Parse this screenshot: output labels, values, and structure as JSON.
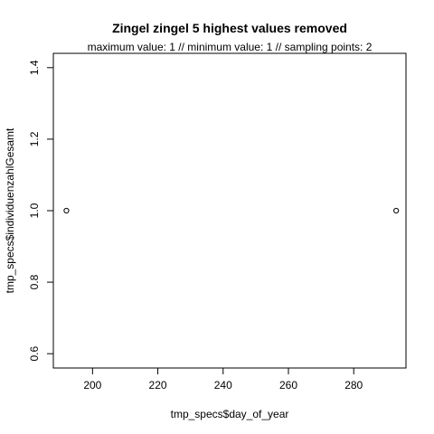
{
  "chart_data": {
    "type": "scatter",
    "title": "Zingel zingel  5 highest values removed",
    "subtitle": "maximum value: 1  //  minimum value: 1  // sampling points: 2",
    "xlabel": "tmp_specs$day_of_year",
    "ylabel": "tmp_specs$individuenzahlGesamt",
    "xlim": [
      188,
      296
    ],
    "ylim": [
      0.56,
      1.44
    ],
    "x_ticks": [
      200,
      220,
      240,
      260,
      280
    ],
    "y_ticks": [
      0.6,
      0.8,
      1.0,
      1.2,
      1.4
    ],
    "x_tick_labels": [
      "200",
      "220",
      "240",
      "260",
      "280"
    ],
    "y_tick_labels": [
      "0.6",
      "0.8",
      "1.0",
      "1.2",
      "1.4"
    ],
    "points": [
      {
        "x": 192,
        "y": 1.0
      },
      {
        "x": 293,
        "y": 1.0
      }
    ],
    "marker": "open-circle",
    "grid": false,
    "colors": {
      "points": "#000000",
      "axes": "#000000",
      "background": "#ffffff"
    }
  }
}
